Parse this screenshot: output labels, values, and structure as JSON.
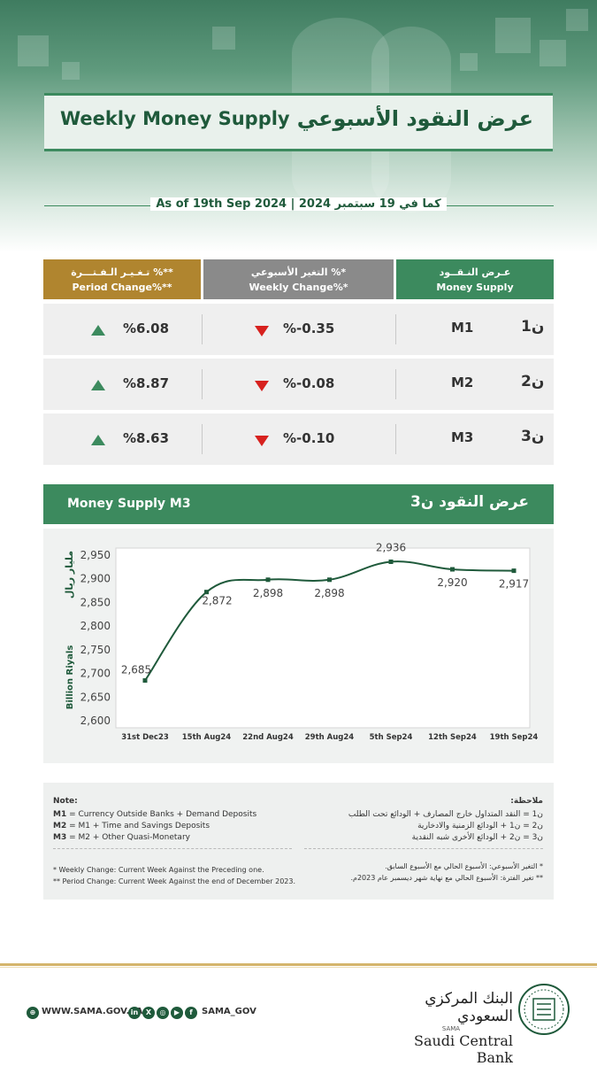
{
  "header": {
    "title_en": "Weekly Money Supply",
    "title_ar": "عرض النقود الأسبوعي",
    "as_of": "As of 19th Sep 2024 | 2024 كما في 19 سبتمبر"
  },
  "table": {
    "headers": [
      {
        "ar": "عـرض النـقــود",
        "en": "Money Supply",
        "color": "#3c8a5e"
      },
      {
        "ar": "التغير الأسبوعي %*",
        "en": "Weekly Change%*",
        "color": "#8a8a8a"
      },
      {
        "ar": "تـغـيـر الـفـتـــرة %**",
        "en": "Period Change%**",
        "color": "#b0852f"
      }
    ],
    "rows": [
      {
        "label_en": "M1",
        "label_ar": "ن1",
        "weekly": "%-0.35",
        "weekly_dir": "down",
        "period": "%6.08",
        "period_dir": "up"
      },
      {
        "label_en": "M2",
        "label_ar": "ن2",
        "weekly": "%-0.08",
        "weekly_dir": "down",
        "period": "%8.87",
        "period_dir": "up"
      },
      {
        "label_en": "M3",
        "label_ar": "ن3",
        "weekly": "%-0.10",
        "weekly_dir": "down",
        "period": "%8.63",
        "period_dir": "up"
      }
    ]
  },
  "chart_header": {
    "en": "Money Supply M3",
    "ar": "عرض النقود ن3"
  },
  "chart_data": {
    "type": "line",
    "categories": [
      "31st Dec23",
      "15th Aug24",
      "22nd Aug24",
      "29th Aug24",
      "5th Sep24",
      "12th Sep24",
      "19th Sep24"
    ],
    "values": [
      2685,
      2872,
      2898,
      2898,
      2936,
      2920,
      2917
    ],
    "data_labels": [
      "2,685",
      "2,872",
      "2,898",
      "2,898",
      "2,936",
      "2,920",
      "2,917"
    ],
    "yticks": [
      "2,950",
      "2,900",
      "2,850",
      "2,800",
      "2,750",
      "2,700",
      "2,650",
      "2,600"
    ],
    "ytick_values": [
      2950,
      2900,
      2850,
      2800,
      2750,
      2700,
      2650,
      2600
    ],
    "ylim": [
      2600,
      2950
    ],
    "ylabel_en": "Billion Riyals",
    "ylabel_ar": "مليار ريال",
    "line_color": "#1f5a3b"
  },
  "notes": {
    "en_title": "Note:",
    "en_lines": [
      {
        "key": "M1",
        "text": " = Currency Outside Banks + Demand Deposits"
      },
      {
        "key": "M2",
        "text": " = M1 + Time and Savings Deposits"
      },
      {
        "key": "M3",
        "text": " = M2 + Other Quasi-Monetary"
      }
    ],
    "en_foot": [
      "* Weekly Change: Current Week Against the Preceding one.",
      "** Period Change: Current Week Against the end of  December 2023."
    ],
    "ar_title": "ملاحظة:",
    "ar_lines": [
      "ن1 = النقد المتداول خارج المصارف + الودائع تحت الطلب",
      "ن2 = ن1 + الودائع الزمنية والادخارية",
      "ن3 = ن2 + الودائع الأخرى شبه النقدية"
    ],
    "ar_foot": [
      "* التغير الأسبوعي: الأسبوع الحالي مع الأسبوع السابق.",
      "** تغير الفترة: الأسبوع الحالي مع نهاية شهر ديسمبر عام 2023م."
    ]
  },
  "footer": {
    "website": "WWW.SAMA.GOV.SA",
    "handle": "SAMA_GOV",
    "social_icons": [
      "linkedin-icon",
      "x-icon",
      "instagram-icon",
      "youtube-icon",
      "facebook-icon"
    ],
    "bank_ar": "البنك المركزي السعودي",
    "bank_small": "SAMA",
    "bank_en": "Saudi Central Bank"
  }
}
